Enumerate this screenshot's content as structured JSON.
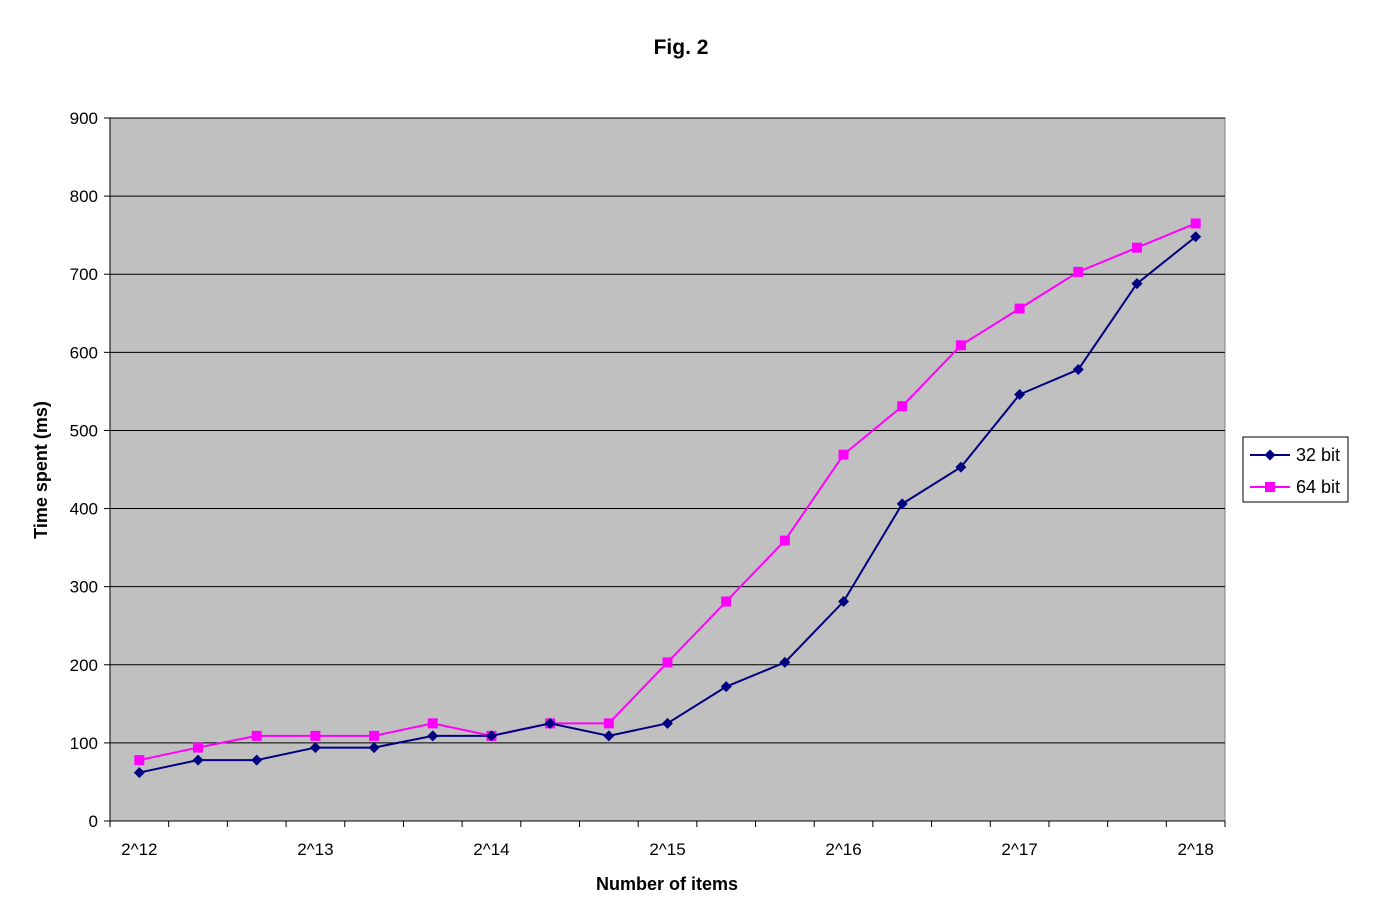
{
  "chart_data": {
    "type": "line",
    "title": "Fig. 2",
    "xlabel": "Number of items",
    "ylabel": "Time spent (ms)",
    "ylim": [
      0,
      900
    ],
    "yticks": [
      0,
      100,
      200,
      300,
      400,
      500,
      600,
      700,
      800,
      900
    ],
    "x_tick_labels": [
      "2^12",
      "2^13",
      "2^14",
      "2^15",
      "2^16",
      "2^17",
      "2^18"
    ],
    "grid": "horizontal",
    "legend_position": "right",
    "plot_background": "#c0c0c0",
    "series": [
      {
        "name": "32 bit",
        "color": "#000080",
        "marker": "diamond",
        "values": [
          62,
          78,
          78,
          94,
          94,
          109,
          109,
          125,
          109,
          125,
          172,
          203,
          281,
          406,
          453,
          546,
          578,
          688,
          748
        ]
      },
      {
        "name": "64 bit",
        "color": "#ff00ff",
        "marker": "square",
        "values": [
          78,
          94,
          109,
          109,
          109,
          125,
          109,
          125,
          125,
          203,
          281,
          359,
          469,
          531,
          609,
          656,
          703,
          734,
          765
        ]
      }
    ]
  }
}
